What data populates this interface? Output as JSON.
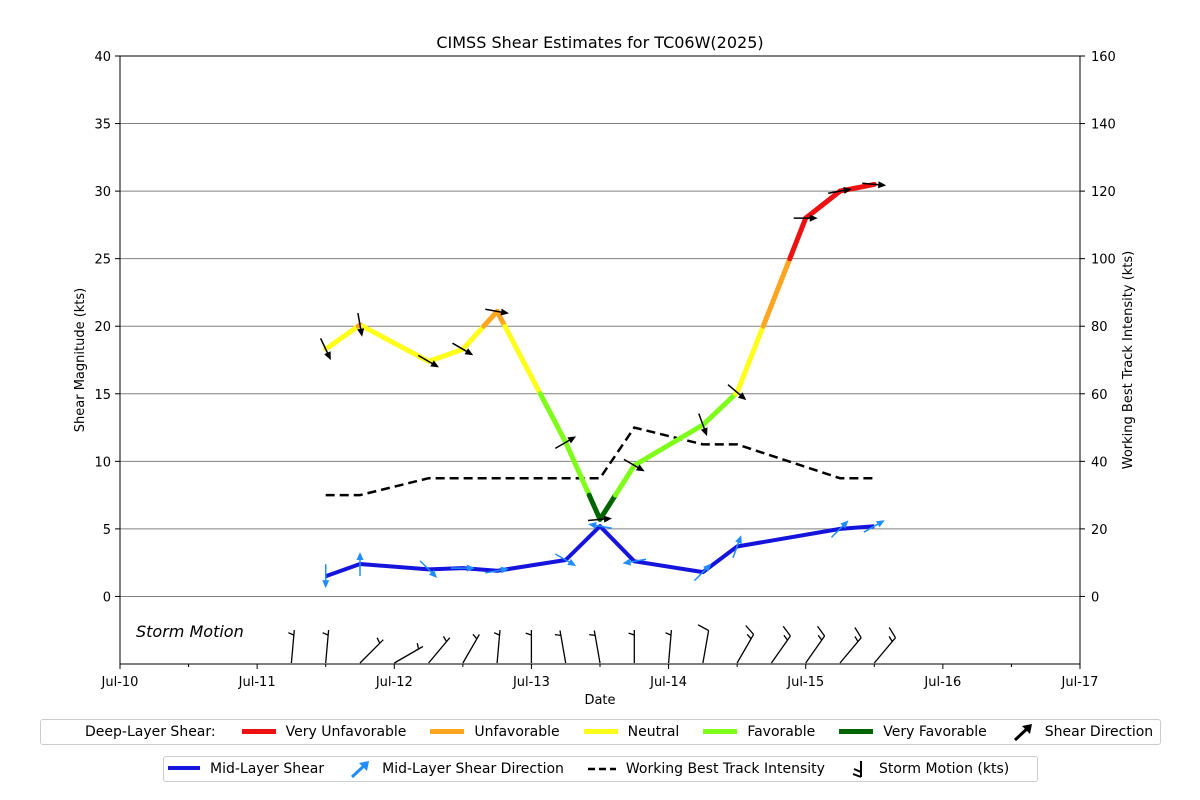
{
  "chart_data": {
    "type": "line",
    "title": "CIMSS Shear Estimates for TC06W(2025)",
    "xlabel": "Date",
    "ylabel_left": "Shear Magnitude (kts)",
    "ylabel_right": "Working Best Track Intensity (kts)",
    "x_ticks": [
      "Jul-10",
      "Jul-11",
      "Jul-12",
      "Jul-13",
      "Jul-14",
      "Jul-15",
      "Jul-16",
      "Jul-17"
    ],
    "y_left_ticks": [
      "0",
      "5",
      "10",
      "15",
      "20",
      "25",
      "30",
      "35",
      "40"
    ],
    "y_right_ticks": [
      "0",
      "20",
      "40",
      "60",
      "80",
      "100",
      "120",
      "140",
      "160"
    ],
    "y_left_range": [
      -5,
      40
    ],
    "y_right_range": [
      -20,
      160
    ],
    "grid": "horizontal",
    "annotation": "Storm Motion",
    "deep_layer_shear": {
      "name": "Deep-Layer Shear",
      "x_days": [
        1.5,
        1.75,
        2.25,
        2.5,
        2.75,
        3.25,
        3.5,
        3.75,
        4.25,
        4.5,
        5.0,
        5.25,
        5.5
      ],
      "values": [
        18.3,
        20.1,
        17.4,
        18.3,
        21.1,
        11.4,
        5.7,
        9.7,
        12.7,
        15.1,
        28.0,
        30.0,
        30.5
      ],
      "shear_direction_deg": [
        155,
        170,
        120,
        120,
        100,
        60,
        85,
        120,
        160,
        130,
        90,
        80,
        95
      ],
      "categories": [
        {
          "label": "Very Unfavorable",
          "color": "#ee1111",
          "threshold": 25
        },
        {
          "label": "Unfavorable",
          "color": "#ffa51f",
          "threshold": 20
        },
        {
          "label": "Neutral",
          "color": "#ffff1a",
          "threshold": 15
        },
        {
          "label": "Favorable",
          "color": "#7ffe1a",
          "threshold": 7.5
        },
        {
          "label": "Very Favorable",
          "color": "#006400",
          "threshold": 0
        }
      ]
    },
    "mid_layer_shear": {
      "name": "Mid-Layer Shear",
      "color": "#1414dc",
      "arrow_color": "#1f8cff",
      "x_days": [
        1.5,
        1.75,
        2.25,
        2.5,
        2.75,
        3.25,
        3.5,
        3.75,
        4.25,
        4.5,
        5.25,
        5.5
      ],
      "values": [
        1.5,
        2.4,
        2.0,
        2.1,
        1.9,
        2.7,
        5.2,
        2.6,
        1.8,
        3.7,
        5.0,
        5.2
      ],
      "direction_deg": [
        180,
        0,
        135,
        90,
        80,
        120,
        280,
        260,
        45,
        20,
        45,
        60
      ]
    },
    "working_best_track_intensity": {
      "name": "Working Best Track Intensity",
      "x_days": [
        1.5,
        1.75,
        2.25,
        3.5,
        3.75,
        4.25,
        4.5,
        5.25,
        5.5
      ],
      "values": [
        30,
        30,
        35,
        35,
        50,
        45,
        45,
        35,
        35
      ]
    },
    "storm_motion": {
      "name": "Storm Motion (kts)",
      "x_days": [
        1.25,
        1.5,
        1.75,
        2.0,
        2.25,
        2.5,
        2.75,
        3.0,
        3.25,
        3.5,
        3.75,
        4.0,
        4.25,
        4.5,
        4.75,
        5.0,
        5.25,
        5.5
      ],
      "direction_deg": [
        185,
        185,
        225,
        240,
        220,
        210,
        185,
        180,
        170,
        170,
        180,
        185,
        190,
        210,
        215,
        215,
        220,
        220
      ],
      "speed_kts": [
        5,
        5,
        5,
        5,
        5,
        5,
        5,
        5,
        5,
        5,
        5,
        5,
        10,
        15,
        15,
        15,
        15,
        15
      ]
    }
  },
  "legend": {
    "deep_title": "Deep-Layer Shear:",
    "very_unfavorable": "Very Unfavorable",
    "unfavorable": "Unfavorable",
    "neutral": "Neutral",
    "favorable": "Favorable",
    "very_favorable": "Very Favorable",
    "shear_direction": "Shear Direction",
    "mid_layer_shear": "Mid-Layer Shear",
    "mid_layer_shear_direction": "Mid-Layer Shear Direction",
    "working_best_track": "Working Best Track Intensity",
    "storm_motion": "Storm Motion (kts)",
    "colors": {
      "very_unfavorable": "#ee1111",
      "unfavorable": "#ffa51f",
      "neutral": "#ffff1a",
      "favorable": "#7ffe1a",
      "very_favorable": "#006400",
      "mid_layer": "#1414dc",
      "mid_arrow": "#1f8cff"
    }
  }
}
